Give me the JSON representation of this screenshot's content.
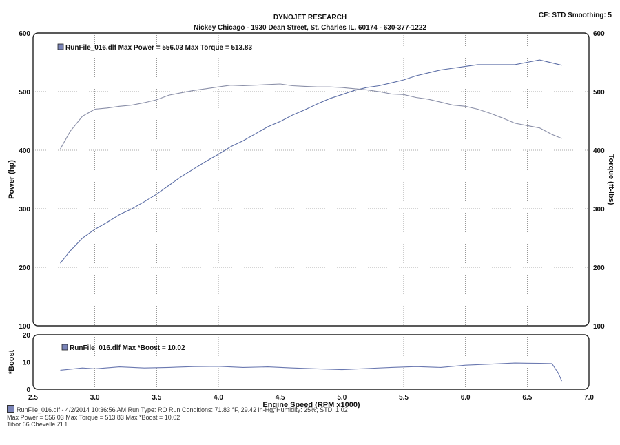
{
  "header": {
    "title": "DYNOJET RESEARCH",
    "subtitle": "Nickey Chicago - 1930 Dean Street, St. Charles IL. 60174 - 630-377-1222",
    "settings": "CF: STD  Smoothing: 5"
  },
  "colors": {
    "power": "#5c6ea6",
    "torque": "#8a8fa8",
    "boost": "#6a78b0",
    "grid": "#555555",
    "swatch": "#7a84b8"
  },
  "footer": {
    "line1": "RunFile_016.dlf - 4/2/2014 10:36:56 AM  Run Type: RO  Run Conditions: 71.83 °F, 29.42 in-Hg, Humidity: 25%, STD, 1.02",
    "line2": "Max Power = 556.03  Max Torque = 513.83  Max *Boost = 10.02",
    "line3": "Tibor 66 Chevelle ZL1"
  },
  "chart_data": [
    {
      "type": "line",
      "xlabel": "Engine Speed (RPM x1000)",
      "ylabel": "Power (hp)",
      "y2label": "Torque (ft-lbs)",
      "xlim": [
        2.5,
        7.0
      ],
      "xticks": [
        "2.5",
        "3.0",
        "3.5",
        "4.0",
        "4.5",
        "5.0",
        "5.5",
        "6.0",
        "6.5",
        "7.0"
      ],
      "ylim": [
        100,
        600
      ],
      "yticks": [
        "100",
        "200",
        "300",
        "400",
        "500",
        "600"
      ],
      "y2lim": [
        100,
        600
      ],
      "y2ticks": [
        "100",
        "200",
        "300",
        "400",
        "500",
        "600"
      ],
      "grid": true,
      "legend": "RunFile_016.dlf Max Power = 556.03      Max Torque = 513.83",
      "series": [
        {
          "name": "Power",
          "x": [
            2.72,
            2.8,
            2.9,
            3.0,
            3.1,
            3.2,
            3.3,
            3.4,
            3.5,
            3.6,
            3.7,
            3.8,
            3.9,
            4.0,
            4.1,
            4.2,
            4.3,
            4.4,
            4.5,
            4.6,
            4.7,
            4.8,
            4.9,
            5.0,
            5.1,
            5.2,
            5.3,
            5.4,
            5.5,
            5.6,
            5.7,
            5.8,
            5.9,
            6.0,
            6.1,
            6.2,
            6.3,
            6.4,
            6.5,
            6.6,
            6.7,
            6.78
          ],
          "values": [
            207,
            228,
            250,
            265,
            277,
            290,
            300,
            312,
            325,
            340,
            355,
            368,
            381,
            393,
            406,
            416,
            428,
            440,
            449,
            460,
            469,
            479,
            488,
            495,
            502,
            507,
            510,
            515,
            520,
            527,
            532,
            537,
            540,
            543,
            546,
            546,
            546,
            546,
            550,
            554,
            549,
            545
          ]
        },
        {
          "name": "Torque",
          "x": [
            2.72,
            2.8,
            2.9,
            3.0,
            3.1,
            3.2,
            3.3,
            3.4,
            3.5,
            3.6,
            3.7,
            3.8,
            3.9,
            4.0,
            4.1,
            4.2,
            4.3,
            4.4,
            4.5,
            4.6,
            4.7,
            4.8,
            4.9,
            5.0,
            5.1,
            5.2,
            5.3,
            5.4,
            5.5,
            5.6,
            5.7,
            5.8,
            5.9,
            6.0,
            6.1,
            6.2,
            6.3,
            6.4,
            6.5,
            6.6,
            6.7,
            6.78
          ],
          "values": [
            402,
            432,
            458,
            470,
            472,
            475,
            477,
            481,
            486,
            494,
            498,
            502,
            505,
            508,
            511,
            510,
            511,
            512,
            513,
            510,
            509,
            508,
            508,
            507,
            505,
            503,
            500,
            496,
            495,
            490,
            487,
            482,
            477,
            475,
            470,
            463,
            455,
            446,
            442,
            438,
            427,
            420
          ]
        }
      ]
    },
    {
      "type": "line",
      "xlabel": "Engine Speed (RPM x1000)",
      "ylabel": "*Boost",
      "xlim": [
        2.5,
        7.0
      ],
      "ylim": [
        0,
        20
      ],
      "yticks": [
        "0",
        "10",
        "20"
      ],
      "grid": true,
      "legend": "RunFile_016.dlf Max *Boost = 10.02",
      "series": [
        {
          "name": "*Boost",
          "x": [
            2.72,
            2.9,
            3.0,
            3.2,
            3.4,
            3.6,
            3.8,
            4.0,
            4.2,
            4.4,
            4.6,
            4.8,
            5.0,
            5.2,
            5.4,
            5.6,
            5.8,
            6.0,
            6.2,
            6.4,
            6.6,
            6.7,
            6.75,
            6.78
          ],
          "values": [
            7.0,
            7.8,
            7.5,
            8.2,
            7.8,
            8.0,
            8.3,
            8.4,
            8.0,
            8.2,
            7.8,
            7.5,
            7.2,
            7.6,
            8.0,
            8.3,
            8.0,
            8.8,
            9.2,
            9.6,
            9.5,
            9.4,
            6.0,
            3.0
          ]
        }
      ]
    }
  ]
}
